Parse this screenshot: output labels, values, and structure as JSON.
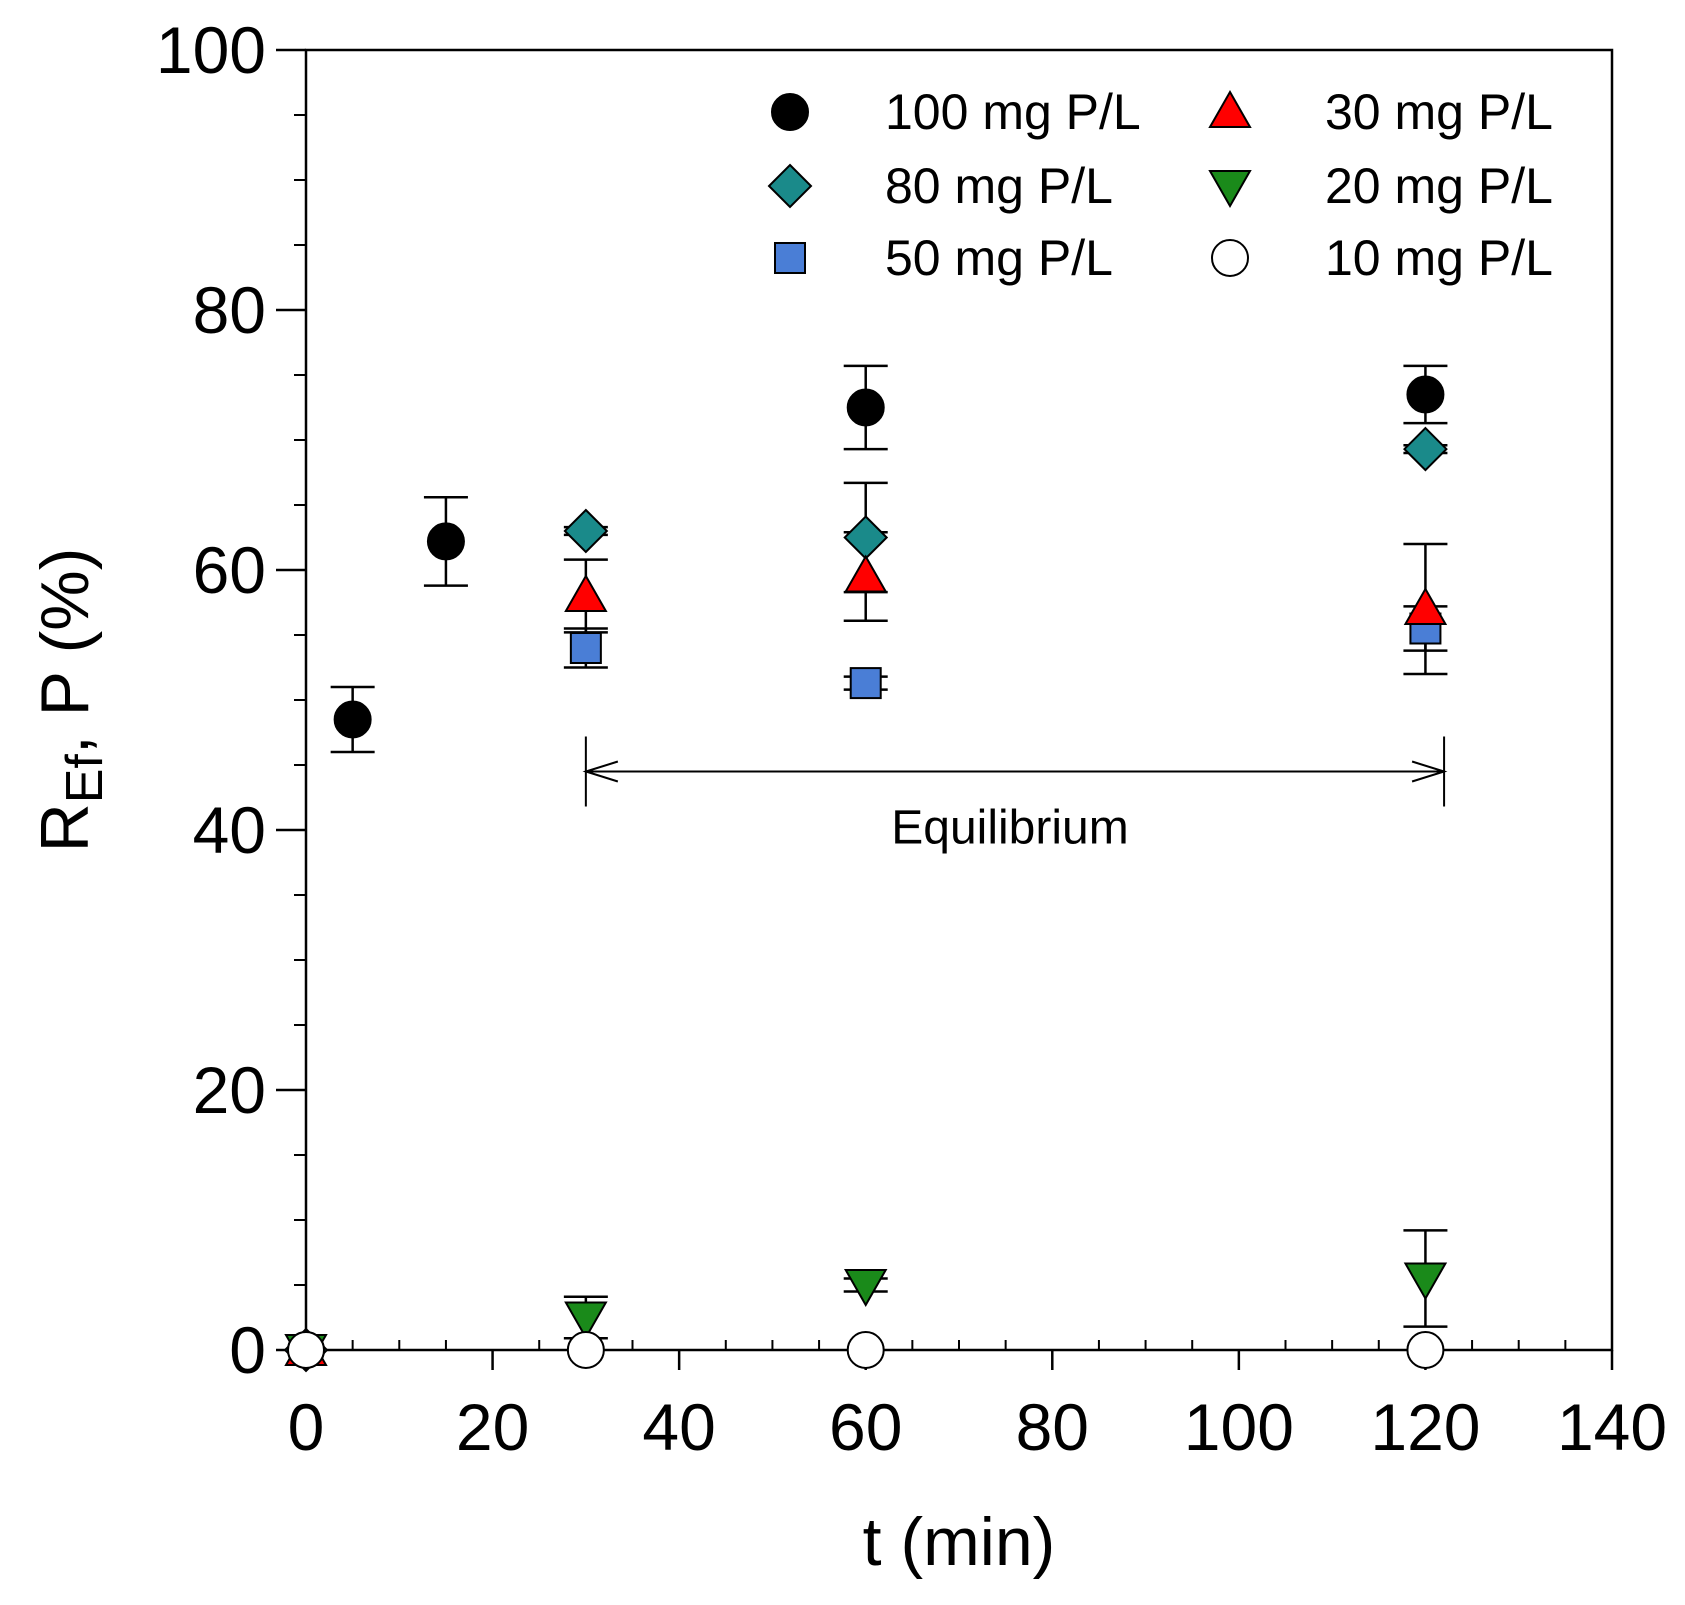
{
  "chart_data": {
    "type": "scatter",
    "title": "",
    "xlabel": "t (min)",
    "ylabel": {
      "main": "R",
      "subscript": "Ef",
      "rest": ", P (%)"
    },
    "xlim": [
      0,
      140
    ],
    "ylim": [
      0,
      100
    ],
    "x_ticks": [
      0,
      20,
      40,
      60,
      80,
      100,
      120,
      140
    ],
    "x_tick_labels": [
      "0",
      "20",
      "40",
      "60",
      "80",
      "100",
      "120",
      "140"
    ],
    "y_ticks": [
      0,
      20,
      40,
      60,
      80,
      100
    ],
    "y_tick_labels": [
      "0",
      "20",
      "40",
      "60",
      "80",
      "100"
    ],
    "x_minor_step": 5,
    "y_minor_step": 5,
    "grid": false,
    "legend_position": "top-right",
    "series": [
      {
        "name": "100 mg P/L",
        "marker": "circle",
        "fill": "#000000",
        "points": [
          {
            "x": 0,
            "y": 0,
            "err": 0
          },
          {
            "x": 5,
            "y": 48.5,
            "err": 2.5
          },
          {
            "x": 15,
            "y": 62.2,
            "err": 3.4
          },
          {
            "x": 60,
            "y": 72.5,
            "err": 3.2
          },
          {
            "x": 120,
            "y": 73.5,
            "err": 2.2
          }
        ]
      },
      {
        "name": "80 mg P/L",
        "marker": "diamond",
        "fill": "#1a8a8a",
        "points": [
          {
            "x": 0,
            "y": 0,
            "err": 0
          },
          {
            "x": 30,
            "y": 63,
            "err": 0.3
          },
          {
            "x": 60,
            "y": 62.5,
            "err": 4.2
          },
          {
            "x": 120,
            "y": 69.3,
            "err": 0.3
          }
        ]
      },
      {
        "name": "50 mg P/L",
        "marker": "square",
        "fill": "#4a7ed6",
        "points": [
          {
            "x": 0,
            "y": 0,
            "err": 0
          },
          {
            "x": 30,
            "y": 54,
            "err": 1.5
          },
          {
            "x": 60,
            "y": 51.3,
            "err": 0.5
          },
          {
            "x": 120,
            "y": 55.5,
            "err": 1.7
          }
        ]
      },
      {
        "name": "30 mg P/L",
        "marker": "triangle-up",
        "fill": "#ff0000",
        "points": [
          {
            "x": 0,
            "y": 0,
            "err": 0
          },
          {
            "x": 30,
            "y": 58,
            "err": 2.8
          },
          {
            "x": 60,
            "y": 59.5,
            "err": 3.4
          },
          {
            "x": 120,
            "y": 57,
            "err": 5
          }
        ]
      },
      {
        "name": "20 mg P/L",
        "marker": "triangle-down",
        "fill": "#1a8a1a",
        "points": [
          {
            "x": 0,
            "y": 0,
            "err": 0
          },
          {
            "x": 30,
            "y": 2.5,
            "err": 1.6
          },
          {
            "x": 60,
            "y": 5,
            "err": 0.5
          },
          {
            "x": 120,
            "y": 5.5,
            "err": 3.7
          }
        ]
      },
      {
        "name": "10 mg P/L",
        "marker": "circle",
        "fill": "#ffffff",
        "points": [
          {
            "x": 0,
            "y": 0,
            "err": 0
          },
          {
            "x": 30,
            "y": 0,
            "err": 0
          },
          {
            "x": 60,
            "y": 0,
            "err": 0
          },
          {
            "x": 120,
            "y": 0,
            "err": 0
          }
        ]
      }
    ],
    "annotations": [
      {
        "text": "Equilibrium",
        "x_start": 30,
        "x_end": 122,
        "y": 44.5
      }
    ]
  }
}
